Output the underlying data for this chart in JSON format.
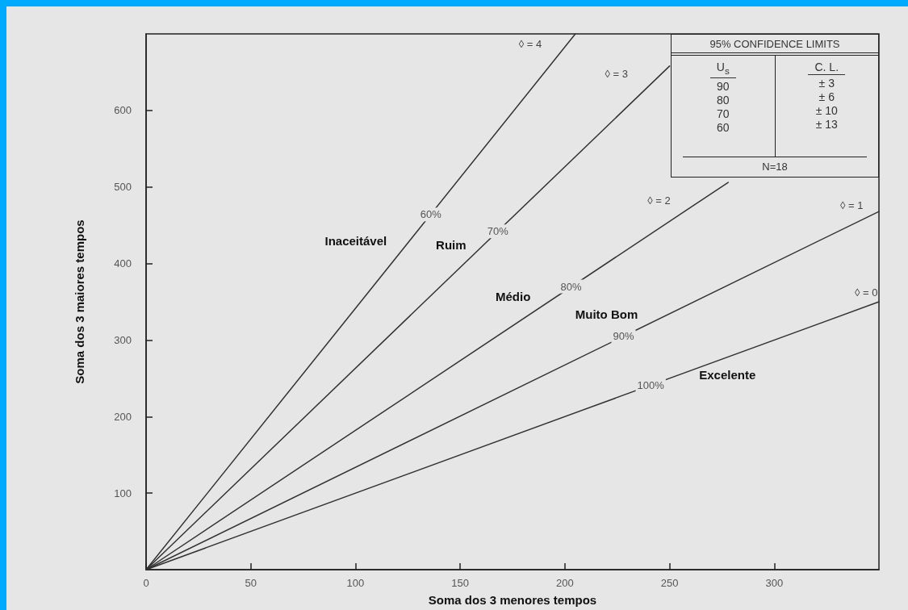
{
  "chart_data": {
    "type": "line",
    "xlabel": "Soma dos 3 menores tempos",
    "ylabel": "Soma dos 3 maiores tempos",
    "xlim": [
      0,
      350
    ],
    "xticks": [
      0,
      50,
      100,
      150,
      200,
      250,
      300
    ],
    "ylim": [
      0,
      700
    ],
    "yticks": [
      100,
      200,
      300,
      400,
      500,
      600
    ],
    "grid": false,
    "marker": "none",
    "line_style": "solid",
    "series": [
      {
        "name": "◊ = 4",
        "color": "#333333",
        "x": [
          0,
          205
        ],
        "values": [
          0,
          700
        ]
      },
      {
        "name": "◊ = 3",
        "color": "#333333",
        "x": [
          0,
          250
        ],
        "values": [
          0,
          658
        ]
      },
      {
        "name": "◊ = 2",
        "color": "#333333",
        "x": [
          0,
          278
        ],
        "values": [
          0,
          506
        ]
      },
      {
        "name": "◊ = 1",
        "color": "#333333",
        "x": [
          0,
          350
        ],
        "values": [
          0,
          468
        ]
      },
      {
        "name": "◊ = 0",
        "color": "#333333",
        "x": [
          0,
          350
        ],
        "values": [
          0,
          350
        ]
      }
    ],
    "annotations": [
      {
        "text": "60%",
        "x": 136,
        "y": 464
      },
      {
        "text": "70%",
        "x": 168,
        "y": 442
      },
      {
        "text": "80%",
        "x": 203,
        "y": 370
      },
      {
        "text": "90%",
        "x": 228,
        "y": 305
      },
      {
        "text": "100%",
        "x": 241,
        "y": 241
      },
      "Inaceitável",
      "Ruim",
      "Médio",
      "Muito Bom",
      "Excelente",
      "95% CONFIDENCE LIMITS",
      "U$_{s}$",
      "C. L.",
      "90",
      "80",
      "70",
      "60",
      "± 3",
      "± 6",
      "± 10",
      "± 13",
      "N=18"
    ]
  }
}
